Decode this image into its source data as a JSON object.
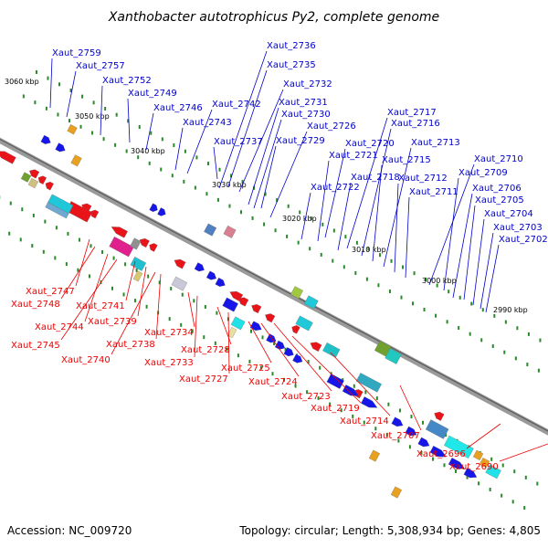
{
  "title": "Xanthobacter autotrophicus Py2, complete genome",
  "footer": {
    "accession": "Accession: NC_009720",
    "topology": "Topology: circular; Length: 5,308,934 bp; Genes: 4,805"
  },
  "colors": {
    "top_labels": "#0000cc",
    "bottom_labels": "#ee0000",
    "backbone": "#7a7a7a",
    "dots": "#2a8a2a"
  },
  "scale_ticks": [
    "3060 kbp",
    "3050 kbp",
    "3040 kbp",
    "3030 kbp",
    "3020 kbp",
    "3010 kbp",
    "3000 kbp",
    "2990 kbp"
  ],
  "top_labels": [
    "Xaut_2759",
    "Xaut_2757",
    "Xaut_2752",
    "Xaut_2749",
    "Xaut_2746",
    "Xaut_2743",
    "Xaut_2742",
    "Xaut_2737",
    "Xaut_2736",
    "Xaut_2735",
    "Xaut_2732",
    "Xaut_2731",
    "Xaut_2730",
    "Xaut_2729",
    "Xaut_2726",
    "Xaut_2722",
    "Xaut_2721",
    "Xaut_2720",
    "Xaut_2718",
    "Xaut_2717",
    "Xaut_2716",
    "Xaut_2715",
    "Xaut_2713",
    "Xaut_2712",
    "Xaut_2711",
    "Xaut_2710",
    "Xaut_2709",
    "Xaut_2706",
    "Xaut_2705",
    "Xaut_2704",
    "Xaut_2703",
    "Xaut_2702"
  ],
  "bottom_labels": [
    "Xaut_2747",
    "Xaut_2748",
    "Xaut_2744",
    "Xaut_2745",
    "Xaut_2741",
    "Xaut_2739",
    "Xaut_2740",
    "Xaut_2738",
    "Xaut_2734",
    "Xaut_2733",
    "Xaut_2728",
    "Xaut_2727",
    "Xaut_2725",
    "Xaut_2724",
    "Xaut_2723",
    "Xaut_2719",
    "Xaut_2714",
    "Xaut_2707",
    "Xaut_2696",
    "Xaut_2690"
  ]
}
